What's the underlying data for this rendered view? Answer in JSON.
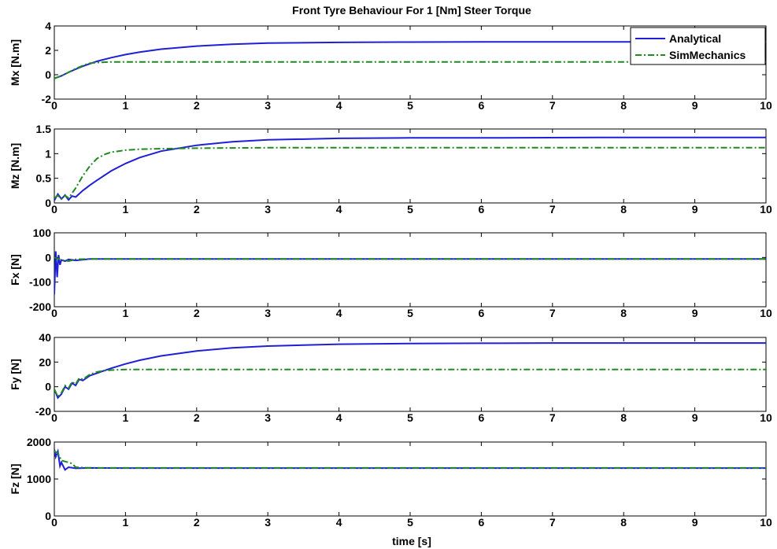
{
  "figure": {
    "title": "Front Tyre Behaviour For 1 [Nm] Steer Torque",
    "xlabel": "time [s]"
  },
  "chart_data": [
    {
      "type": "line",
      "ylabel": "Mx [N.m]",
      "xlim": [
        0,
        10
      ],
      "ylim": [
        -2,
        4
      ],
      "xticks": [
        0,
        1,
        2,
        3,
        4,
        5,
        6,
        7,
        8,
        9,
        10
      ],
      "yticks": [
        -2,
        0,
        2,
        4
      ],
      "legend": "top-right",
      "series": [
        {
          "name": "Analytical",
          "color": "#1f1fd6",
          "style": "solid",
          "x": [
            0,
            0.1,
            0.2,
            0.3,
            0.4,
            0.5,
            0.6,
            0.8,
            1,
            1.2,
            1.5,
            2,
            2.5,
            3,
            4,
            5,
            6,
            7,
            8,
            9,
            10
          ],
          "y": [
            -0.3,
            -0.1,
            0.2,
            0.45,
            0.7,
            0.9,
            1.1,
            1.4,
            1.65,
            1.85,
            2.1,
            2.35,
            2.5,
            2.6,
            2.65,
            2.68,
            2.7,
            2.7,
            2.7,
            2.7,
            2.7
          ]
        },
        {
          "name": "SimMechanics",
          "color": "#1f8a1f",
          "style": "dashdot",
          "x": [
            0,
            0.1,
            0.2,
            0.3,
            0.4,
            0.5,
            0.6,
            0.8,
            1,
            1.5,
            2,
            3,
            4,
            5,
            6,
            7,
            8,
            9,
            10
          ],
          "y": [
            -0.3,
            -0.1,
            0.2,
            0.5,
            0.75,
            0.95,
            1.0,
            1.05,
            1.05,
            1.05,
            1.05,
            1.05,
            1.05,
            1.05,
            1.05,
            1.05,
            1.05,
            1.05,
            1.05
          ]
        }
      ]
    },
    {
      "type": "line",
      "ylabel": "Mz [N.m]",
      "xlim": [
        0,
        10
      ],
      "ylim": [
        0,
        1.5
      ],
      "xticks": [
        0,
        1,
        2,
        3,
        4,
        5,
        6,
        7,
        8,
        9,
        10
      ],
      "yticks": [
        0,
        0.5,
        1,
        1.5
      ],
      "series": [
        {
          "name": "Analytical",
          "color": "#1f1fd6",
          "style": "solid",
          "x": [
            0,
            0.05,
            0.1,
            0.15,
            0.2,
            0.25,
            0.3,
            0.4,
            0.5,
            0.6,
            0.8,
            1,
            1.2,
            1.5,
            2,
            2.5,
            3,
            4,
            5,
            6,
            8,
            10
          ],
          "y": [
            0.05,
            0.18,
            0.08,
            0.16,
            0.06,
            0.14,
            0.12,
            0.25,
            0.36,
            0.46,
            0.65,
            0.8,
            0.92,
            1.05,
            1.17,
            1.24,
            1.28,
            1.31,
            1.32,
            1.32,
            1.33,
            1.33
          ]
        },
        {
          "name": "SimMechanics",
          "color": "#1f8a1f",
          "style": "dashdot",
          "x": [
            0,
            0.05,
            0.1,
            0.15,
            0.2,
            0.3,
            0.4,
            0.5,
            0.6,
            0.7,
            0.8,
            0.9,
            1,
            1.2,
            1.5,
            2,
            3,
            4,
            5,
            6,
            7,
            8,
            9,
            10
          ],
          "y": [
            0.1,
            0.15,
            0.08,
            0.15,
            0.1,
            0.3,
            0.55,
            0.75,
            0.9,
            0.98,
            1.03,
            1.05,
            1.07,
            1.09,
            1.1,
            1.11,
            1.12,
            1.12,
            1.12,
            1.12,
            1.12,
            1.12,
            1.12,
            1.12
          ]
        }
      ]
    },
    {
      "type": "line",
      "ylabel": "Fx [N]",
      "xlim": [
        0,
        10
      ],
      "ylim": [
        -200,
        100
      ],
      "xticks": [
        0,
        1,
        2,
        3,
        4,
        5,
        6,
        7,
        8,
        9,
        10
      ],
      "yticks": [
        -200,
        -100,
        0,
        100
      ],
      "series": [
        {
          "name": "Analytical",
          "color": "#1f1fd6",
          "style": "solid",
          "x": [
            0,
            0.02,
            0.04,
            0.06,
            0.08,
            0.1,
            0.15,
            0.2,
            0.3,
            0.5,
            1,
            2,
            3,
            4,
            5,
            6,
            7,
            8,
            9,
            10
          ],
          "y": [
            -150,
            25,
            -80,
            10,
            -30,
            -10,
            -15,
            -8,
            -12,
            -6,
            -6,
            -6,
            -6,
            -6,
            -6,
            -6,
            -6,
            -6,
            -6,
            -6
          ]
        },
        {
          "name": "SimMechanics",
          "color": "#1f8a1f",
          "style": "dashdot",
          "x": [
            0,
            0.05,
            0.1,
            0.2,
            0.3,
            0.5,
            1,
            2,
            3,
            4,
            5,
            6,
            7,
            8,
            9,
            10
          ],
          "y": [
            0,
            -5,
            -10,
            -15,
            -8,
            -6,
            -6,
            -6,
            -6,
            -6,
            -6,
            -6,
            -6,
            -6,
            -6,
            -6
          ]
        }
      ]
    },
    {
      "type": "line",
      "ylabel": "Fy [N]",
      "xlim": [
        0,
        10
      ],
      "ylim": [
        -20,
        40
      ],
      "xticks": [
        0,
        1,
        2,
        3,
        4,
        5,
        6,
        7,
        8,
        9,
        10
      ],
      "yticks": [
        -20,
        0,
        20,
        40
      ],
      "series": [
        {
          "name": "Analytical",
          "color": "#1f1fd6",
          "style": "solid",
          "x": [
            0,
            0.05,
            0.1,
            0.15,
            0.2,
            0.25,
            0.3,
            0.35,
            0.4,
            0.5,
            0.6,
            0.8,
            1,
            1.2,
            1.5,
            2,
            2.5,
            3,
            4,
            5,
            6,
            7,
            8,
            10
          ],
          "y": [
            -2,
            -9,
            -6,
            0,
            -2,
            3,
            1,
            6,
            5,
            9,
            11,
            15,
            18.5,
            21.5,
            25,
            29,
            31.5,
            33,
            34.5,
            35,
            35.3,
            35.5,
            35.5,
            35.5
          ]
        },
        {
          "name": "SimMechanics",
          "color": "#1f8a1f",
          "style": "dashdot",
          "x": [
            0,
            0.05,
            0.1,
            0.15,
            0.2,
            0.25,
            0.3,
            0.35,
            0.4,
            0.5,
            0.6,
            0.7,
            0.8,
            1,
            1.5,
            2,
            3,
            4,
            5,
            6,
            7,
            8,
            9,
            10
          ],
          "y": [
            -2,
            -8,
            -5,
            1,
            -1,
            4,
            2,
            7,
            6,
            10,
            12,
            13,
            13.5,
            14,
            14,
            14,
            14,
            14,
            14,
            14,
            14,
            14,
            14,
            14
          ]
        }
      ]
    },
    {
      "type": "line",
      "ylabel": "Fz [N]",
      "xlim": [
        0,
        10
      ],
      "ylim": [
        0,
        2000
      ],
      "xticks": [
        0,
        1,
        2,
        3,
        4,
        5,
        6,
        7,
        8,
        9,
        10
      ],
      "yticks": [
        0,
        1000,
        2000
      ],
      "series": [
        {
          "name": "Analytical",
          "color": "#1f1fd6",
          "style": "solid",
          "x": [
            0,
            0.02,
            0.05,
            0.08,
            0.1,
            0.15,
            0.2,
            0.3,
            0.5,
            1,
            2,
            3,
            4,
            5,
            6,
            7,
            8,
            9,
            10
          ],
          "y": [
            1800,
            1600,
            1750,
            1350,
            1450,
            1250,
            1320,
            1290,
            1300,
            1295,
            1295,
            1295,
            1295,
            1295,
            1295,
            1295,
            1295,
            1295,
            1295
          ]
        },
        {
          "name": "SimMechanics",
          "color": "#1f8a1f",
          "style": "dashdot",
          "x": [
            0,
            0.05,
            0.1,
            0.2,
            0.25,
            0.3,
            0.5,
            1,
            2,
            3,
            4,
            5,
            6,
            7,
            8,
            9,
            10
          ],
          "y": [
            1750,
            1700,
            1500,
            1450,
            1420,
            1320,
            1300,
            1300,
            1300,
            1300,
            1300,
            1300,
            1300,
            1300,
            1300,
            1300,
            1300
          ]
        }
      ]
    }
  ]
}
